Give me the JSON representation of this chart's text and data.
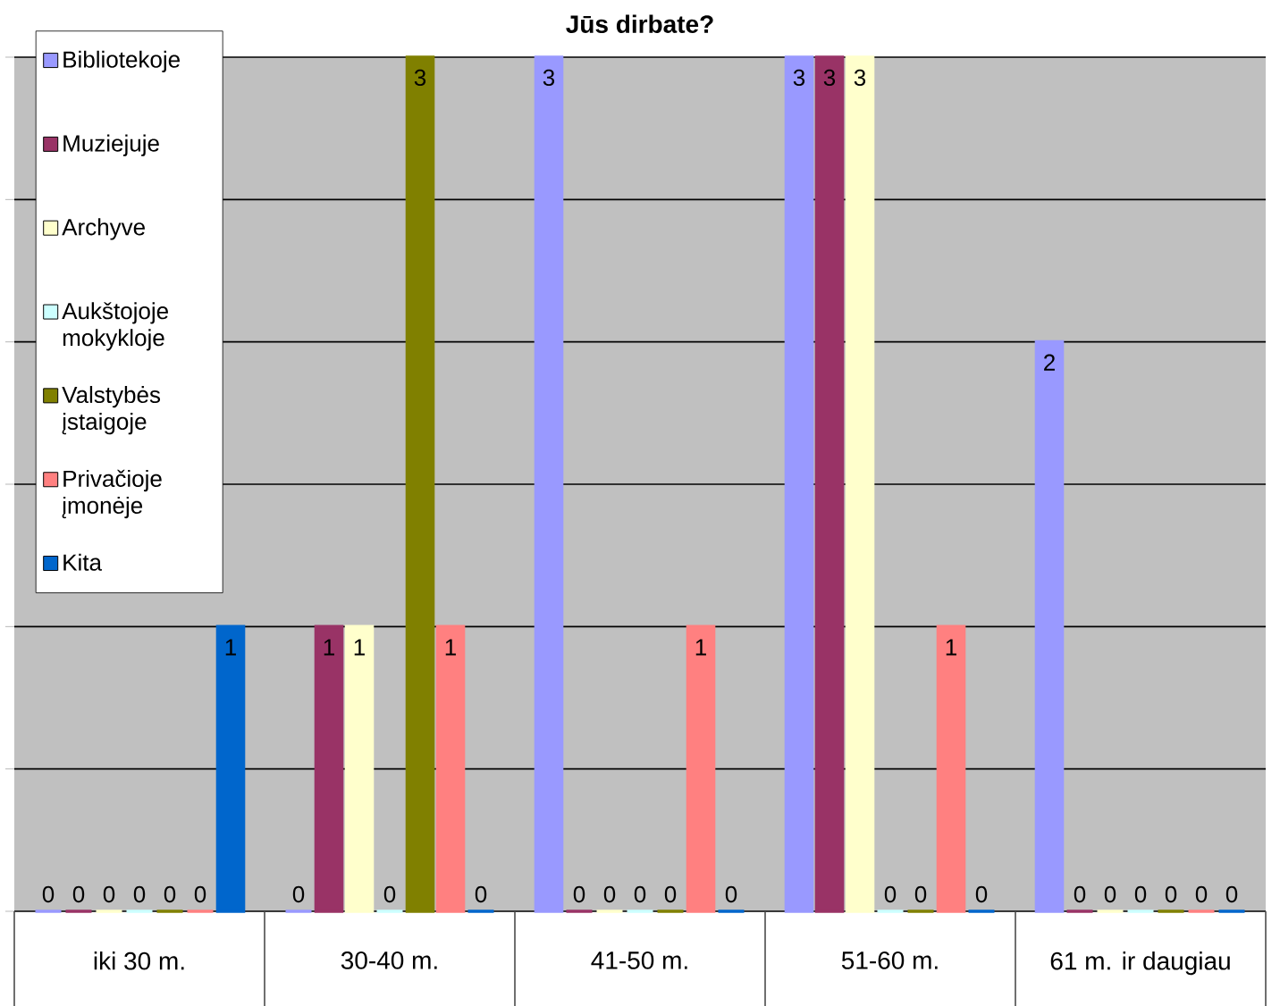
{
  "chart_data": {
    "type": "bar",
    "title": "Jūs dirbate?",
    "categories": [
      "iki 30 m.",
      "30-40 m.",
      "41-50 m.",
      "51-60 m.",
      "61 m. ir daugiau"
    ],
    "series": [
      {
        "name": "Bibliotekoje",
        "color": "#9999ff",
        "values": [
          0,
          0,
          3,
          3,
          2
        ]
      },
      {
        "name": "Muziejuje",
        "color": "#993366",
        "values": [
          0,
          1,
          0,
          3,
          0
        ]
      },
      {
        "name": "Archyve",
        "color": "#ffffcc",
        "values": [
          0,
          1,
          0,
          3,
          0
        ]
      },
      {
        "name": "Aukštojoje mokykloje",
        "color": "#ccffff",
        "values": [
          0,
          0,
          0,
          0,
          0
        ]
      },
      {
        "name": "Valstybės įstaigoje",
        "color": "#808000",
        "values": [
          0,
          3,
          0,
          0,
          0
        ]
      },
      {
        "name": "Privačioje įmonėje",
        "color": "#ff8080",
        "values": [
          0,
          1,
          1,
          1,
          0
        ]
      },
      {
        "name": "Kita",
        "color": "#0066cc",
        "values": [
          1,
          0,
          0,
          0,
          0
        ]
      }
    ],
    "ylim": [
      0,
      3
    ],
    "yticks": [
      {
        "value": 0,
        "label": null
      },
      {
        "value": 0.5,
        "label": null
      },
      {
        "value": 1,
        "label": null
      },
      {
        "value": 1.5,
        "label": null
      },
      {
        "value": 2,
        "label": null
      },
      {
        "value": 2.5,
        "label": null
      },
      {
        "value": 3,
        "label": null
      }
    ],
    "grid": "y",
    "legend": "top left",
    "tick_labels": "x",
    "data_labels": true
  }
}
